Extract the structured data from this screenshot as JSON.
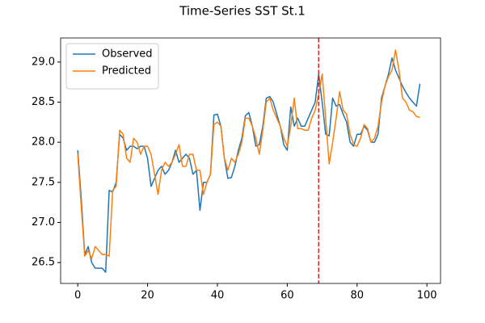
{
  "chart_data": {
    "type": "line",
    "title": "Time-Series SST St.1",
    "x": [
      0,
      1,
      2,
      3,
      4,
      5,
      6,
      7,
      8,
      9,
      10,
      11,
      12,
      13,
      14,
      15,
      16,
      17,
      18,
      19,
      20,
      21,
      22,
      23,
      24,
      25,
      26,
      27,
      28,
      29,
      30,
      31,
      32,
      33,
      34,
      35,
      36,
      37,
      38,
      39,
      40,
      41,
      42,
      43,
      44,
      45,
      46,
      47,
      48,
      49,
      50,
      51,
      52,
      53,
      54,
      55,
      56,
      57,
      58,
      59,
      60,
      61,
      62,
      63,
      64,
      65,
      66,
      67,
      68,
      69,
      70,
      71,
      72,
      73,
      74,
      75,
      76,
      77,
      78,
      79,
      80,
      81,
      82,
      83,
      84,
      85,
      86,
      87,
      88,
      89,
      90,
      91,
      92,
      93,
      94,
      95,
      96,
      97,
      98
    ],
    "series": [
      {
        "name": "Observed",
        "color": "#1f77b4",
        "values": [
          27.9,
          27.3,
          26.6,
          26.7,
          26.5,
          26.43,
          26.43,
          26.43,
          26.38,
          27.4,
          27.38,
          27.5,
          28.1,
          28.05,
          27.9,
          27.95,
          27.95,
          27.92,
          27.95,
          27.95,
          27.8,
          27.45,
          27.55,
          27.65,
          27.7,
          27.6,
          27.65,
          27.75,
          27.9,
          27.75,
          27.8,
          27.85,
          27.8,
          27.6,
          27.65,
          27.15,
          27.5,
          27.5,
          27.6,
          28.34,
          28.35,
          28.2,
          27.8,
          27.55,
          27.56,
          27.7,
          27.9,
          28.05,
          28.33,
          28.37,
          28.2,
          27.95,
          27.97,
          28.2,
          28.55,
          28.57,
          28.5,
          28.35,
          28.2,
          27.97,
          27.9,
          28.44,
          28.2,
          28.3,
          28.2,
          28.2,
          28.3,
          28.4,
          28.5,
          28.85,
          28.5,
          28.1,
          28.08,
          28.55,
          28.45,
          28.47,
          28.35,
          28.25,
          28.0,
          27.95,
          28.1,
          28.1,
          28.2,
          28.15,
          28.0,
          28.0,
          28.1,
          28.55,
          28.7,
          28.85,
          29.05,
          28.9,
          28.8,
          28.7,
          28.62,
          28.55,
          28.5,
          28.45,
          28.73
        ]
      },
      {
        "name": "Predicted",
        "color": "#ff7f0e",
        "values": [
          27.85,
          27.2,
          26.58,
          26.65,
          26.55,
          26.7,
          26.65,
          26.6,
          26.6,
          26.58,
          27.4,
          27.45,
          28.15,
          28.1,
          27.8,
          27.75,
          28.05,
          28.0,
          27.85,
          27.95,
          27.95,
          27.85,
          27.6,
          27.35,
          27.65,
          27.75,
          27.7,
          27.75,
          27.85,
          27.97,
          27.7,
          27.7,
          27.85,
          27.85,
          27.65,
          27.65,
          27.35,
          27.5,
          27.6,
          28.22,
          28.25,
          28.2,
          27.8,
          27.65,
          27.8,
          27.75,
          27.85,
          28.0,
          28.3,
          28.3,
          28.2,
          28.05,
          27.85,
          28.15,
          28.5,
          28.55,
          28.4,
          28.3,
          28.2,
          28.05,
          27.95,
          28.2,
          28.55,
          28.17,
          28.17,
          28.15,
          28.15,
          28.3,
          28.4,
          28.6,
          28.85,
          28.3,
          27.73,
          28.0,
          28.3,
          28.63,
          28.4,
          28.35,
          28.1,
          27.97,
          27.95,
          28.05,
          28.22,
          28.17,
          28.0,
          28.05,
          28.2,
          28.5,
          28.7,
          28.82,
          28.9,
          29.15,
          28.9,
          28.55,
          28.5,
          28.4,
          28.38,
          28.32,
          28.31
        ]
      }
    ],
    "xlim": [
      -4.9,
      103.9
    ],
    "xticks": [
      0,
      20,
      40,
      60,
      80,
      100
    ],
    "ylim": [
      26.24,
      29.3
    ],
    "yticks": [
      {
        "value": 26.5,
        "label": "26.5"
      },
      {
        "value": 27.0,
        "label": "27.0"
      },
      {
        "value": 27.5,
        "label": "27.5"
      },
      {
        "value": 28.0,
        "label": "28.0"
      },
      {
        "value": 28.5,
        "label": "28.5"
      },
      {
        "value": 29.0,
        "label": "29.0"
      }
    ],
    "vline": {
      "x": 69,
      "color": "#d62728"
    },
    "legend": "upper left",
    "grid": false
  }
}
